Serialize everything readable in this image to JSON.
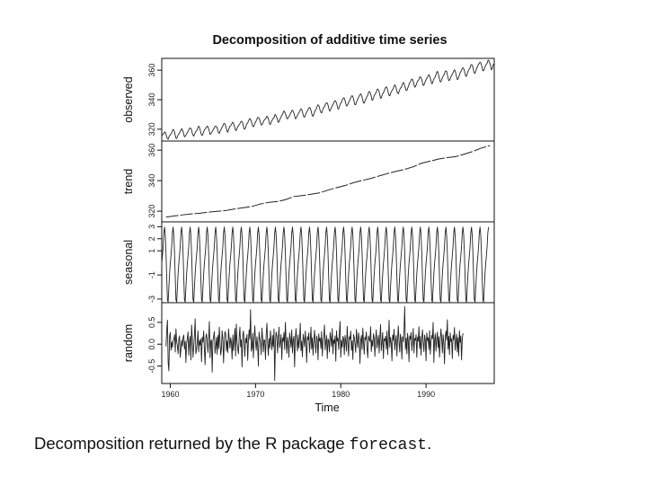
{
  "chart_data": {
    "type": "line",
    "title": "Decomposition of additive time series",
    "xlabel": "Time",
    "xlim": [
      1959,
      1998
    ],
    "x_ticks": [
      "1960",
      "1970",
      "1980",
      "1990"
    ],
    "panels": [
      {
        "name": "observed",
        "ylabel": "observed",
        "ylim": [
          312,
          368
        ],
        "y_ticks": [
          "320",
          "340",
          "360"
        ],
        "x_start": 1959,
        "x_step": 0.0833333,
        "values": [
          315.42,
          316.31,
          316.5,
          317.56,
          318.13,
          318,
          316.39,
          314.65,
          313.68,
          313.18,
          314.66,
          315.43,
          316.27,
          316.81,
          317.42,
          318.87,
          319.87,
          319.43,
          318.01,
          315.74,
          314,
          313.68,
          314.84,
          316.03,
          316.73,
          317.54,
          318.38,
          319.31,
          320.42,
          319.61,
          318.42,
          316.63,
          314.83,
          315.16,
          315.94,
          316.85,
          317.78,
          318.4,
          319.53,
          320.42,
          320.85,
          320.45,
          319.45,
          317.25,
          316.11,
          315.27,
          316.53,
          317.53,
          318.58,
          318.92,
          319.7,
          321.22,
          322.08,
          321.31,
          319.58,
          317.61,
          316.05,
          315.83,
          316.91,
          318.2,
          319.41,
          320.07,
          320.74,
          321.4,
          322.06,
          321.73,
          320.27,
          318.54,
          316.54,
          316.71,
          317.53,
          318.55,
          319.27,
          320.28,
          320.73,
          321.97,
          322,
          321.71,
          321.05,
          318.71,
          317.66,
          317.14,
          318.7,
          319.25,
          320.46,
          321.43,
          322.23,
          323.54,
          323.91,
          323.59,
          322.24,
          320.2,
          318.48,
          317.94,
          319.63,
          320.87,
          322.17,
          322.34,
          322.88,
          324.25,
          324.83,
          323.93,
          322.38,
          320.76,
          319.1,
          319.24,
          320.56,
          321.8,
          322.4,
          322.99,
          323.73,
          324.86,
          325.4,
          325.2,
          323.98,
          321.95,
          320.18,
          320.09,
          321.16,
          322.74,
          323.83,
          324.26,
          325.47,
          326.5,
          327.21,
          326.54,
          325.72,
          323.5,
          322.22,
          321.62,
          322.69,
          323.95,
          324.89,
          325.82,
          326.77,
          327.97,
          327.91,
          327.5,
          326.18,
          324.53,
          322.93,
          322.9,
          323.85,
          324.96,
          326.01,
          326.51,
          327.01,
          327.62,
          328.76,
          328.4,
          327.2,
          325.27,
          323.2,
          323.4,
          324.63,
          325.85,
          326.6,
          327.47,
          327.58,
          329.56,
          329.9,
          328.92,
          327.88,
          326.16,
          324.68,
          325.04,
          326.34,
          327.39,
          328.37,
          329.4,
          330.14,
          331.33,
          332.31,
          331.9,
          330.7,
          329.15,
          327.35,
          327.02,
          327.99,
          328.48,
          329.18,
          330.55,
          331.32,
          332.48,
          332.92,
          332.08,
          331.01,
          329.23,
          327.27,
          327.21,
          328.29,
          329.41,
          330.23,
          331.25,
          331.87,
          333.14,
          333.8,
          333.43,
          331.73,
          329.9,
          328.4,
          328.17,
          329.32,
          330.59,
          331.58,
          332.39,
          333.33,
          334.41,
          334.71,
          334.17,
          332.89,
          330.77,
          329.14,
          328.78,
          330.14,
          331.52,
          332.75,
          333.24,
          334.53,
          335.9,
          336.57,
          336.1,
          334.76,
          332.59,
          331.42,
          330.98,
          332.24,
          333.68,
          334.8,
          335.22,
          336.47,
          337.59,
          337.84,
          337.72,
          336.37,
          334.51,
          332.6,
          332.38,
          333.75,
          334.78,
          336.05,
          336.59,
          337.79,
          338.71,
          339.3,
          339.12,
          337.56,
          335.92,
          333.75,
          333.7,
          335.12,
          336.56,
          337.84,
          338.19,
          339.91,
          340.6,
          341.29,
          341,
          339.39,
          337.43,
          335.72,
          335.84,
          336.93,
          338.04,
          339.06,
          340.3,
          341.21,
          342.33,
          342.74,
          342.08,
          340.32,
          338.26,
          336.52,
          336.68,
          338.19,
          339.44,
          340.57,
          341.44,
          342.53,
          343.39,
          343.96,
          343.18,
          341.88,
          339.65,
          337.81,
          337.69,
          339.09,
          340.32,
          341.2,
          342.35,
          342.93,
          344.77,
          345.58,
          345.14,
          343.81,
          342.21,
          339.69,
          339.82,
          340.98,
          342.82,
          343.52,
          344.33,
          345.11,
          346.88,
          347.25,
          346.62,
          345.22,
          343.11,
          340.9,
          341.18,
          342.8,
          344.04,
          344.79,
          345.82,
          347.25,
          348.17,
          348.74,
          348.07,
          346.38,
          344.51,
          342.92,
          342.62,
          344.06,
          345.38,
          346.11,
          346.78,
          347.68,
          349.37,
          350.03,
          349.37,
          347.76,
          345.73,
          344.68,
          343.99,
          345.48,
          346.72,
          347.84,
          348.29,
          349.23,
          350.8,
          351.66,
          351.07,
          349.33,
          347.92,
          346.27,
          346.18,
          347.64,
          348.78,
          350.25,
          351.54,
          352.05,
          353.41,
          354.04,
          353.62,
          352.22,
          350.27,
          348.55,
          348.72,
          349.91,
          351.18,
          352.6,
          352.92,
          353.53,
          355.26,
          355.52,
          354.97,
          353.75,
          351.52,
          349.64,
          349.83,
          351.14,
          352.37,
          353.5,
          354.55,
          355.23,
          356.04,
          357,
          356.07,
          354.67,
          352.76,
          350.82,
          351.04,
          352.69,
          354.07,
          354.59,
          355.63,
          357.03,
          358.48,
          359.22,
          358.12,
          356.06,
          353.92,
          352.05,
          352.11,
          353.64,
          354.89,
          355.88,
          356.63,
          357.72,
          359.07,
          359.58,
          359.17,
          356.94,
          354.92,
          352.94,
          353.23,
          354.09,
          355.33,
          356.63,
          357.1,
          358.32,
          359.41,
          360.23,
          359.55,
          357.53,
          355.48,
          353.67,
          353.95,
          355.3,
          356.78,
          358.34,
          358.89,
          359.95,
          361.25,
          361.67,
          360.94,
          359.55,
          357.49,
          355.84,
          356,
          357.59,
          359.05,
          359.98,
          361.03,
          361.66,
          363.48,
          363.82,
          363.3,
          361.94,
          359.5,
          358.11,
          357.8,
          359.61,
          360.74,
          362.09,
          363.29,
          364.06,
          364.76,
          365.45,
          365.01,
          363.7,
          361.54,
          359.51,
          359.65,
          360.8,
          362.38,
          363.23,
          364.06,
          364.61,
          366.4,
          366.84,
          365.68,
          364.52,
          362.57,
          360.24,
          360.83,
          362.49,
          364.34
        ]
      },
      {
        "name": "trend",
        "ylabel": "trend",
        "ylim": [
          313,
          366
        ],
        "y_ticks": [
          "320",
          "340",
          "360"
        ],
        "x_start": 1959.5,
        "x_step": 1,
        "values": [
          316.1,
          316.9,
          317.6,
          318.2,
          318.7,
          319.4,
          319.9,
          320.4,
          321.4,
          322.2,
          323.0,
          324.6,
          325.7,
          326.3,
          327.5,
          329.6,
          330.2,
          331.1,
          332.0,
          333.8,
          335.4,
          336.8,
          338.7,
          340.1,
          341.4,
          343.1,
          344.7,
          346.1,
          347.4,
          349.1,
          351.5,
          352.8,
          354.2,
          355.1,
          355.8,
          357.4,
          359.2,
          361.4,
          363.0
        ]
      },
      {
        "name": "seasonal",
        "ylabel": "seasonal",
        "ylim": [
          -3.3,
          3.4
        ],
        "y_ticks": [
          "-3",
          "-1",
          "1",
          "2",
          "3"
        ],
        "pattern_monthly": [
          -0.05,
          0.61,
          1.38,
          2.5,
          2.97,
          2.3,
          0.82,
          -1.24,
          -3.07,
          -3.24,
          -2.06,
          -0.94
        ],
        "x_start": 1959,
        "x_step": 0.0833333
      },
      {
        "name": "random",
        "ylabel": "random",
        "ylim": [
          -0.9,
          0.95
        ],
        "y_ticks": [
          "-0.5",
          "0.0",
          "0.5"
        ],
        "x_start": 1959.5,
        "x_step": 0.0833333,
        "values": [
          -0.05,
          0.32,
          0.55,
          -0.42,
          -0.61,
          0.18,
          0.27,
          -0.14,
          0.05,
          -0.08,
          0.09,
          0.11,
          0.22,
          -0.18,
          0.35,
          0.06,
          -0.04,
          -0.22,
          0.11,
          0.19,
          -0.3,
          -0.12,
          0.09,
          -0.05,
          0.15,
          0.21,
          -0.11,
          0.07,
          -0.42,
          0.02,
          0.13,
          0.28,
          -0.25,
          0.06,
          0.18,
          -0.36,
          0.44,
          0.12,
          -0.3,
          -0.05,
          0.2,
          0.58,
          -0.22,
          -0.12,
          0.05,
          0.31,
          -0.18,
          0.09,
          -0.02,
          0.12,
          -0.4,
          0.16,
          0.05,
          0.3,
          -0.12,
          -0.47,
          0.15,
          0.24,
          0.07,
          -0.19,
          0.1,
          0.52,
          -0.31,
          0.06,
          0.1,
          -0.64,
          0.08,
          0.17,
          0.29,
          -0.21,
          -0.06,
          0.16,
          -0.23,
          0.2,
          -0.1,
          0.39,
          0.07,
          -0.25,
          -0.11,
          0.31,
          0.12,
          -0.43,
          0.06,
          0.29,
          0.23,
          -0.16,
          0.08,
          -0.19,
          0.35,
          0.13,
          -0.09,
          0.15,
          0.04,
          -0.34,
          0.21,
          -0.15,
          0.09,
          0.36,
          -0.27,
          0.46,
          0.05,
          -0.11,
          -0.22,
          0.17,
          0.39,
          -0.06,
          0.1,
          -0.52,
          0.19,
          0.3,
          0.02,
          -0.28,
          0.14,
          0.03,
          0.22,
          -0.37,
          0.08,
          0.33,
          0.11,
          0.79,
          -0.16,
          -0.08,
          0.25,
          -0.31,
          0.1,
          0.42,
          0.05,
          -0.14,
          0.17,
          -0.04,
          -0.5,
          0.28,
          0.12,
          0.06,
          -0.24,
          0.37,
          0.15,
          -0.18,
          0.1,
          0.09,
          -0.35,
          0.22,
          0.48,
          0.04,
          -0.26,
          0.13,
          -0.09,
          0.31,
          0.07,
          -0.13,
          0.2,
          -0.06,
          0.35,
          -0.83,
          0.05,
          0.28,
          0.18,
          -0.2,
          0.11,
          0.39,
          -0.08,
          0.04,
          0.22,
          -0.35,
          0.14,
          0.06,
          0.27,
          -0.12,
          0.5,
          0.08,
          -0.21,
          0.16,
          0.03,
          -0.3,
          0.26,
          0.12,
          -0.07,
          0.33,
          -0.2,
          0.09,
          0.18,
          -0.52,
          0.1,
          0.36,
          0.05,
          -0.16,
          0.21,
          -0.09,
          0.13,
          0.48,
          -0.15,
          0.07,
          -0.29,
          0.23,
          0.12,
          -0.06,
          0.3,
          0.04,
          -0.42,
          0.17,
          0.1,
          0.26,
          -0.19,
          0.06,
          0.39,
          -0.11,
          0.15,
          -0.25,
          0.08,
          0.32,
          0.02,
          -0.2,
          0.19,
          0.11,
          -0.36,
          0.24,
          0.07,
          0.14,
          -0.1,
          0.29,
          -0.27,
          0.09,
          0.16,
          0.44,
          -0.13,
          0.05,
          0.2,
          -0.33,
          0.12,
          0.08,
          -0.18,
          0.27,
          0.15,
          -0.05,
          0.36,
          -0.22,
          0.1,
          0.02,
          0.19,
          -0.39,
          0.31,
          0.07,
          0.14,
          -0.12,
          0.25,
          0.52,
          -0.3,
          0.09,
          -0.07,
          0.18,
          0.13,
          -0.24,
          0.2,
          0.06,
          -0.16,
          0.41,
          0.03,
          -0.27,
          0.17,
          0.11,
          0.3,
          -0.14,
          0.08,
          -0.35,
          0.22,
          0.15,
          0.01,
          -0.19,
          0.34,
          0.09,
          -0.08,
          0.26,
          0.13,
          -0.44,
          0.07,
          0.2,
          -0.12,
          0.37,
          0.05,
          -0.23,
          0.16,
          0.1,
          0.28,
          -0.1,
          -0.31,
          0.19,
          0.12,
          0.06,
          0.4,
          -0.17,
          0.09,
          -0.05,
          0.24,
          0.14,
          -0.28,
          0.11,
          0.33,
          -0.09,
          0.06,
          0.2,
          -0.2,
          0.15,
          0.45,
          -0.15,
          0.04,
          0.27,
          -0.33,
          0.12,
          0.08,
          0.18,
          -0.11,
          0.3,
          -0.24,
          0.1,
          0.55,
          -0.07,
          0.16,
          0.03,
          -0.38,
          0.21,
          0.09,
          0.34,
          -0.13,
          0.07,
          0.2,
          -0.27,
          0.12,
          0.42,
          0.05,
          -0.18,
          0.23,
          0.1,
          -0.34,
          0.17,
          0.06,
          0.3,
          0.86,
          -0.12,
          0.14,
          -0.22,
          0.25,
          0.08,
          -0.4,
          0.19,
          0.11,
          0.27,
          -0.15,
          0.05,
          0.36,
          -0.2,
          0.13,
          0.09,
          0.22,
          -0.3,
          0.16,
          0.07,
          0.4,
          -0.1,
          0.18,
          -0.25,
          0.12,
          0.33,
          0.04,
          -0.17,
          0.21,
          0.1,
          -0.38,
          0.26,
          0.08,
          0.15,
          -0.12,
          0.31,
          -0.23,
          0.06,
          0.2,
          0.13,
          0.5,
          -0.42,
          0.09,
          0.24,
          -0.16,
          0.11,
          0.28,
          -0.08,
          0.17,
          -0.3,
          0.07,
          0.35,
          0.12,
          -0.2,
          0.22,
          0.05,
          -0.45,
          0.14,
          0.3,
          0.09,
          0.56,
          -0.11,
          0.18,
          -0.24,
          0.26,
          0.06,
          0.12,
          -0.33,
          0.2,
          0.1,
          0.38,
          -0.14,
          0.07,
          0.23,
          -0.18,
          0.15,
          -0.27,
          0.31,
          0.04,
          0.19,
          -0.36,
          0.11,
          0.25
        ]
      }
    ]
  },
  "caption": {
    "text": "Decomposition returned by the R package ",
    "code": "forecast",
    "end": "."
  }
}
